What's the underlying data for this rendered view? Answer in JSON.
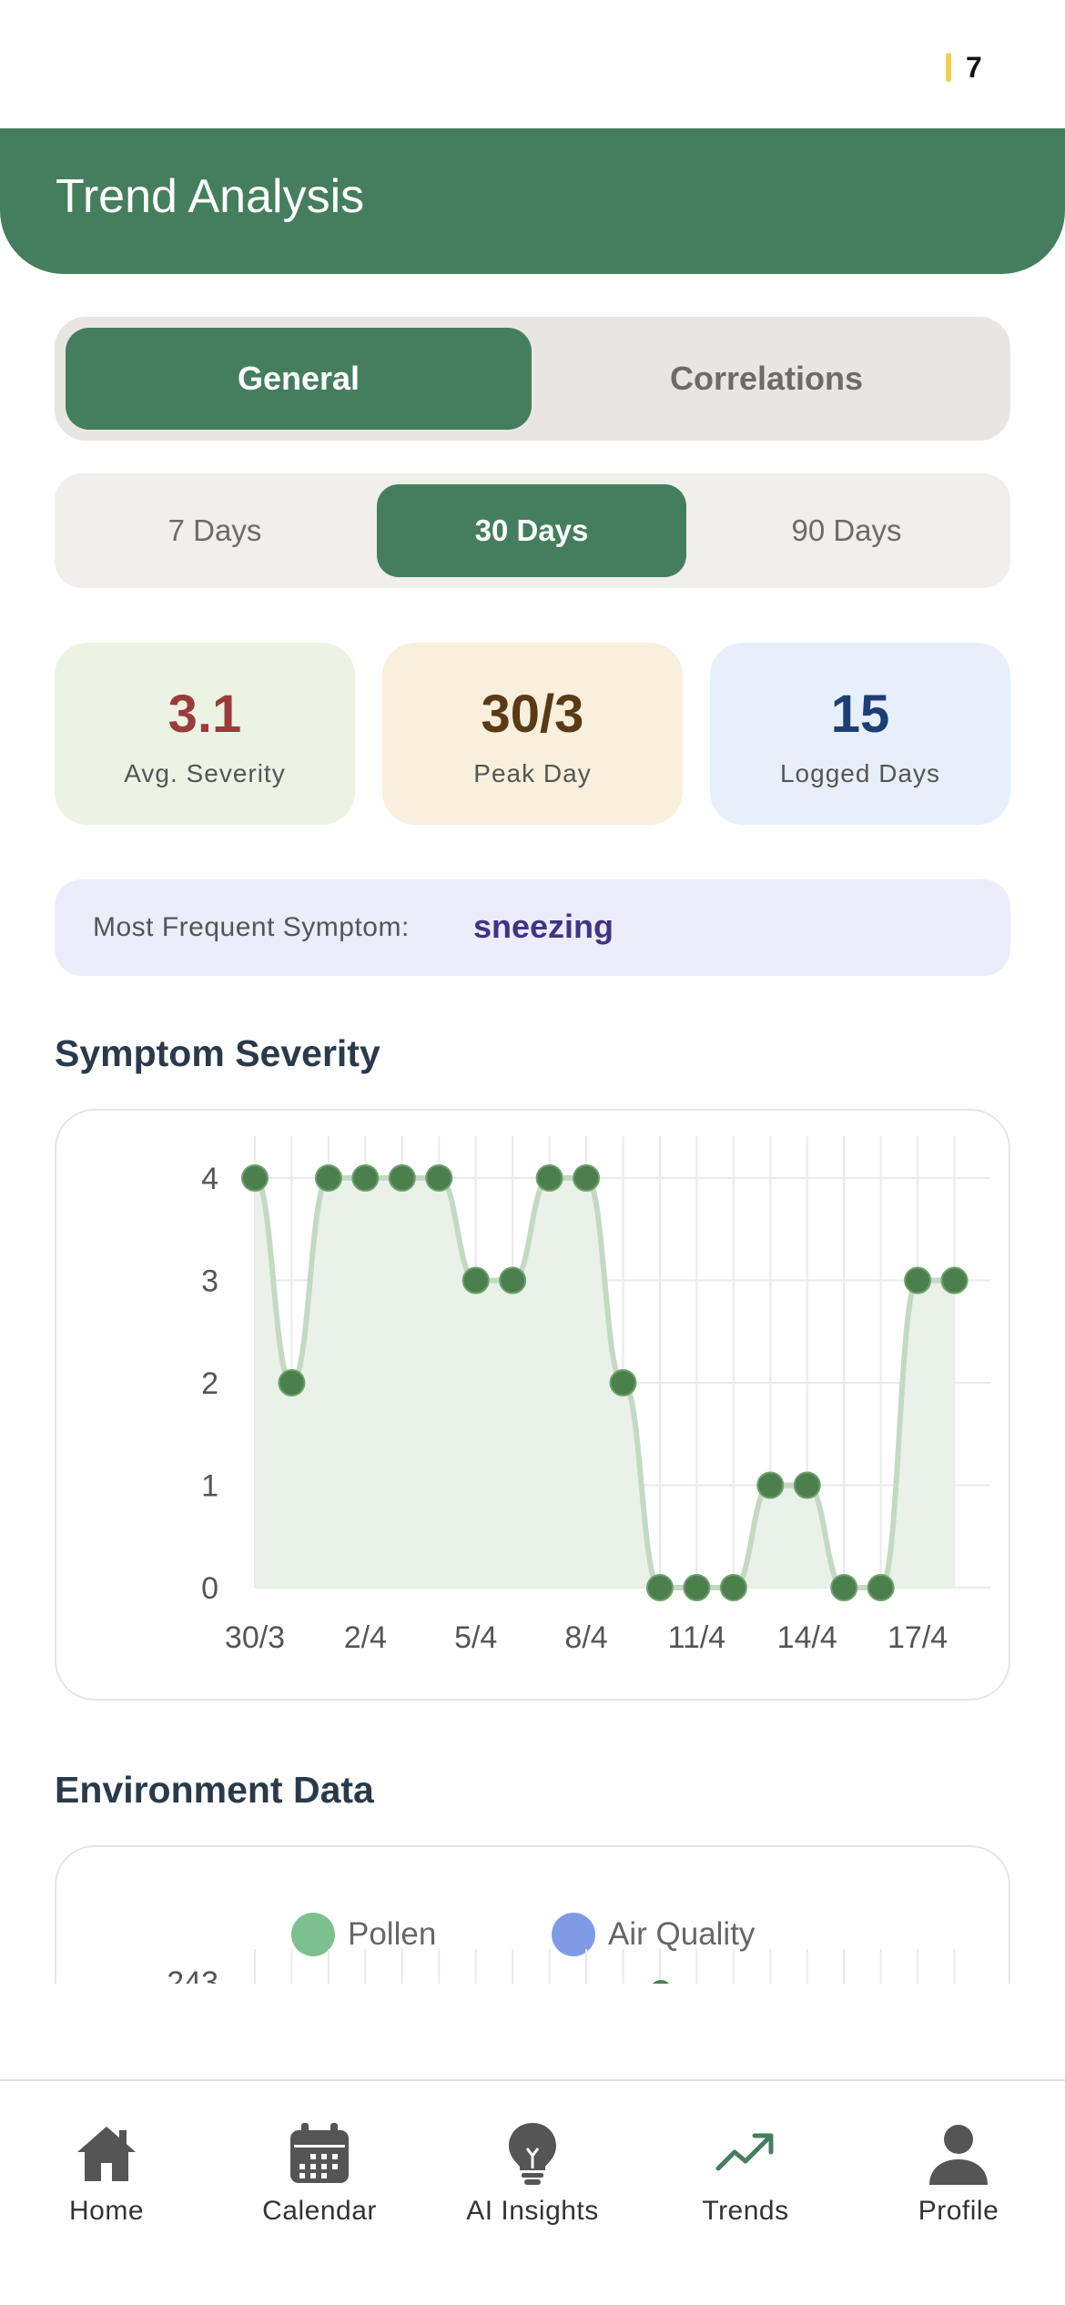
{
  "status_bar": {
    "indicator": "7"
  },
  "header": {
    "title": "Trend Analysis"
  },
  "view_tabs": {
    "general": "General",
    "correlations": "Correlations",
    "active": "general"
  },
  "range_tabs": {
    "d7": "7 Days",
    "d30": "30 Days",
    "d90": "90 Days",
    "active": "d30"
  },
  "stats": {
    "avg_severity": {
      "value": "3.1",
      "label": "Avg. Severity"
    },
    "peak_day": {
      "value": "30/3",
      "label": "Peak Day"
    },
    "logged_days": {
      "value": "15",
      "label": "Logged Days"
    }
  },
  "most_frequent": {
    "label": "Most Frequent Symptom:",
    "value": "sneezing"
  },
  "severity_section": {
    "title": "Symptom Severity"
  },
  "environment_section": {
    "title": "Environment Data"
  },
  "environment_legend": {
    "pollen": "Pollen",
    "air_quality": "Air Quality",
    "pollen_color": "#7dc08f",
    "air_quality_color": "#7f9be6",
    "partial_tick": "243"
  },
  "chart_data": {
    "type": "area",
    "x": [
      "30/3",
      "31/3",
      "1/4",
      "2/4",
      "3/4",
      "4/4",
      "5/4",
      "6/4",
      "7/4",
      "8/4",
      "9/4",
      "10/4",
      "11/4",
      "12/4",
      "13/4",
      "14/4",
      "15/4",
      "16/4",
      "17/4",
      "18/4"
    ],
    "x_tick_labels": [
      "30/3",
      "2/4",
      "5/4",
      "8/4",
      "11/4",
      "14/4",
      "17/4"
    ],
    "series": [
      {
        "values": [
          4,
          2,
          4,
          4,
          4,
          4,
          3,
          3,
          4,
          4,
          2,
          0,
          0,
          0,
          1,
          1,
          0,
          0,
          3,
          3
        ]
      }
    ],
    "y_ticks": [
      "0",
      "1",
      "2",
      "3",
      "4"
    ],
    "ylim": [
      0,
      4
    ],
    "grid": true,
    "line_color": "#c4d9c4",
    "fill_color": "#e9f1e8",
    "point_color": "#4b7f4b"
  },
  "nav": {
    "home": "Home",
    "calendar": "Calendar",
    "ai_insights": "AI Insights",
    "trends": "Trends",
    "profile": "Profile",
    "active": "trends"
  }
}
